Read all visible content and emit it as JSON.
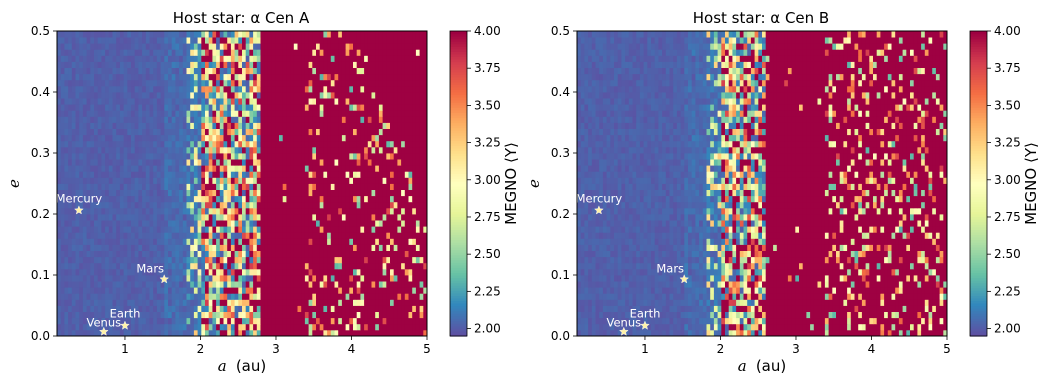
{
  "colors": {
    "colormap_spectral_r": [
      "#5e4fa2",
      "#3288bd",
      "#66c2a5",
      "#abdda4",
      "#e6f598",
      "#ffffbf",
      "#fee08b",
      "#fdae61",
      "#f46d43",
      "#d53e4f",
      "#9e0142"
    ],
    "chaotic": "#9e0142",
    "stable": "#5e4fa2",
    "planet_marker": "#fff2a8"
  },
  "chart_data": [
    {
      "type": "heatmap",
      "title": "Host star: α Cen A",
      "xlabel": "a (au)",
      "xlabel_var": "a",
      "xlabel_unit": "(au)",
      "ylabel": "e",
      "xlim": [
        0.1,
        5.0
      ],
      "ylim": [
        0.0,
        0.5
      ],
      "xticks": [
        1,
        2,
        3,
        4,
        5
      ],
      "yticks": [
        0.0,
        0.1,
        0.2,
        0.3,
        0.4,
        0.5
      ],
      "colorbar": {
        "label": "MEGNO ⟨Y⟩",
        "range": [
          1.95,
          4.0
        ],
        "ticks": [
          2.0,
          2.25,
          2.5,
          2.75,
          3.0,
          3.25,
          3.5,
          3.75,
          4.0
        ]
      },
      "stability_boundary_a": [
        2.0,
        2.8
      ],
      "planets": [
        {
          "name": "Mercury",
          "a": 0.39,
          "e": 0.206
        },
        {
          "name": "Venus",
          "a": 0.72,
          "e": 0.007
        },
        {
          "name": "Earth",
          "a": 1.0,
          "e": 0.017
        },
        {
          "name": "Mars",
          "a": 1.52,
          "e": 0.093
        }
      ]
    },
    {
      "type": "heatmap",
      "title": "Host star: α Cen B",
      "xlabel": "a (au)",
      "xlabel_var": "a",
      "xlabel_unit": "(au)",
      "ylabel": "e",
      "xlim": [
        0.1,
        5.0
      ],
      "ylim": [
        0.0,
        0.5
      ],
      "xticks": [
        1,
        2,
        3,
        4,
        5
      ],
      "yticks": [
        0.0,
        0.1,
        0.2,
        0.3,
        0.4,
        0.5
      ],
      "colorbar": {
        "label": "MEGNO ⟨Y⟩",
        "range": [
          1.95,
          4.0
        ],
        "ticks": [
          2.0,
          2.25,
          2.5,
          2.75,
          3.0,
          3.25,
          3.5,
          3.75,
          4.0
        ]
      },
      "stability_boundary_a": [
        2.0,
        2.6
      ],
      "planets": [
        {
          "name": "Mercury",
          "a": 0.39,
          "e": 0.206
        },
        {
          "name": "Venus",
          "a": 0.72,
          "e": 0.007
        },
        {
          "name": "Earth",
          "a": 1.0,
          "e": 0.017
        },
        {
          "name": "Mars",
          "a": 1.52,
          "e": 0.093
        }
      ]
    }
  ]
}
